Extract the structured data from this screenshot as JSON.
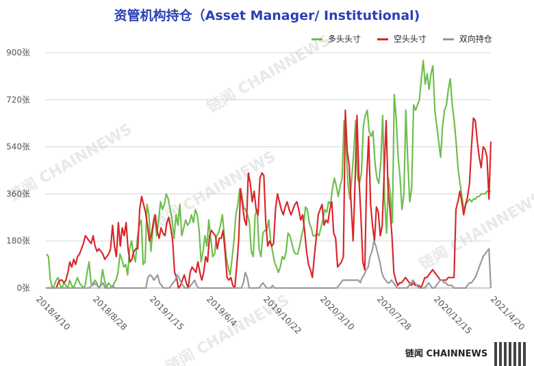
{
  "title": "资管机构持仓（Asset Manager/ Institutional)",
  "watermark": "链闻 CHAINNEWS",
  "brand": "链闻 CHAINNEWS",
  "chart_data": {
    "type": "line",
    "title": "资管机构持仓（Asset Manager/ Institutional)",
    "xlabel": "",
    "ylabel": "",
    "ylim": [
      0,
      900
    ],
    "yticks": [
      "0张",
      "180张",
      "360张",
      "540张",
      "720张",
      "900张"
    ],
    "ytick_values": [
      0,
      180,
      360,
      540,
      720,
      900
    ],
    "xticks": [
      "2018/4/10",
      "2018/8/28",
      "2019/1/15",
      "2019/6/4",
      "2019/10/22",
      "2020/3/10",
      "2020/7/28",
      "2020/12/15",
      "2021/4/20"
    ],
    "grid": "horizontal",
    "legend_position": "top-right",
    "series": [
      {
        "name": "多头头寸",
        "color": "#6dbe4b",
        "values": [
          130,
          120,
          30,
          0,
          10,
          30,
          40,
          10,
          0,
          20,
          10,
          0,
          30,
          10,
          0,
          20,
          40,
          20,
          10,
          0,
          10,
          60,
          100,
          20,
          10,
          30,
          20,
          0,
          10,
          70,
          30,
          0,
          20,
          10,
          0,
          20,
          30,
          60,
          130,
          110,
          80,
          90,
          50,
          150,
          180,
          130,
          100,
          190,
          240,
          260,
          90,
          100,
          320,
          280,
          140,
          220,
          280,
          200,
          260,
          330,
          300,
          320,
          360,
          340,
          300,
          260,
          190,
          280,
          240,
          320,
          200,
          230,
          260,
          240,
          250,
          280,
          250,
          300,
          280,
          220,
          100,
          140,
          200,
          160,
          260,
          190,
          120,
          130,
          200,
          210,
          240,
          280,
          200,
          120,
          80,
          50,
          110,
          180,
          280,
          320,
          380,
          360,
          310,
          300,
          280,
          250,
          140,
          120,
          280,
          300,
          150,
          120,
          210,
          220,
          220,
          260,
          180,
          140,
          100,
          80,
          60,
          80,
          120,
          110,
          140,
          210,
          200,
          170,
          140,
          130,
          130,
          160,
          200,
          230,
          310,
          300,
          250,
          230,
          200,
          200,
          210,
          200,
          230,
          260,
          300,
          290,
          330,
          320,
          380,
          420,
          390,
          350,
          390,
          420,
          640,
          560,
          400,
          340,
          420,
          520,
          640,
          420,
          400,
          440,
          620,
          660,
          680,
          600,
          580,
          600,
          480,
          420,
          400,
          480,
          660,
          340,
          210,
          420,
          360,
          250,
          740,
          650,
          500,
          420,
          300,
          360,
          680,
          480,
          330,
          380,
          700,
          680,
          700,
          720,
          800,
          870,
          780,
          820,
          760,
          820,
          850,
          680,
          620,
          560,
          500,
          620,
          680,
          700,
          760,
          800,
          700,
          640,
          560,
          460,
          400,
          350,
          300,
          320,
          330,
          340,
          330,
          340,
          340,
          350,
          350,
          360,
          360,
          360,
          370,
          370,
          370
        ],
        "note": "approximate readings"
      },
      {
        "name": "空头头寸",
        "color": "#d9262b",
        "values": [
          0,
          0,
          0,
          0,
          0,
          0,
          20,
          30,
          30,
          20,
          30,
          60,
          100,
          80,
          110,
          90,
          120,
          130,
          150,
          170,
          200,
          190,
          180,
          170,
          200,
          160,
          140,
          150,
          140,
          130,
          110,
          120,
          130,
          150,
          240,
          160,
          120,
          250,
          160,
          230,
          200,
          250,
          150,
          100,
          110,
          140,
          150,
          150,
          300,
          350,
          320,
          290,
          240,
          180,
          200,
          250,
          280,
          220,
          190,
          230,
          210,
          200,
          250,
          270,
          230,
          180,
          60,
          40,
          0,
          10,
          30,
          50,
          20,
          0,
          60,
          80,
          70,
          60,
          100,
          60,
          30,
          60,
          120,
          100,
          200,
          220,
          210,
          200,
          150,
          190,
          190,
          220,
          140,
          40,
          30,
          40,
          10,
          0,
          80,
          180,
          380,
          320,
          260,
          240,
          440,
          400,
          330,
          370,
          300,
          280,
          420,
          440,
          430,
          250,
          160,
          180,
          160,
          170,
          300,
          360,
          330,
          300,
          280,
          310,
          330,
          300,
          280,
          300,
          320,
          330,
          300,
          260,
          280,
          220,
          140,
          90,
          70,
          40,
          120,
          190,
          280,
          300,
          320,
          240,
          260,
          250,
          300,
          330,
          210,
          190,
          80,
          90,
          100,
          120,
          680,
          520,
          470,
          320,
          180,
          400,
          660,
          420,
          280,
          100,
          70,
          420,
          580,
          320,
          240,
          180,
          310,
          290,
          200,
          240,
          440,
          640,
          380,
          300,
          200,
          60,
          30,
          10,
          20,
          20,
          30,
          40,
          30,
          20,
          10,
          20,
          10,
          10,
          10,
          0,
          20,
          40,
          40,
          50,
          60,
          70,
          60,
          50,
          40,
          30,
          30,
          30,
          30,
          40,
          40,
          40,
          40,
          300,
          330,
          370,
          330,
          280,
          320,
          350,
          400,
          540,
          650,
          640,
          560,
          500,
          460,
          540,
          530,
          500,
          340,
          560
        ],
        "note": "approximate readings"
      },
      {
        "name": "双向持仓",
        "color": "#999999",
        "values": [
          0,
          0,
          0,
          0,
          0,
          0,
          0,
          0,
          0,
          0,
          0,
          0,
          0,
          0,
          0,
          0,
          0,
          0,
          0,
          0,
          0,
          0,
          0,
          10,
          20,
          15,
          10,
          0,
          10,
          20,
          0,
          0,
          0,
          0,
          10,
          0,
          0,
          0,
          0,
          0,
          0,
          0,
          0,
          0,
          0,
          0,
          0,
          0,
          0,
          0,
          0,
          0,
          40,
          50,
          45,
          30,
          40,
          50,
          20,
          10,
          0,
          0,
          0,
          0,
          10,
          20,
          30,
          50,
          40,
          20,
          10,
          0,
          0,
          0,
          10,
          20,
          30,
          10,
          0,
          0,
          0,
          0,
          0,
          0,
          0,
          0,
          0,
          0,
          0,
          0,
          0,
          0,
          0,
          0,
          0,
          0,
          0,
          0,
          0,
          0,
          0,
          20,
          60,
          40,
          0,
          0,
          0,
          0,
          0,
          0,
          10,
          20,
          10,
          0,
          0,
          0,
          10,
          0,
          0,
          0,
          0,
          0,
          0,
          0,
          0,
          0,
          0,
          0,
          0,
          0,
          0,
          0,
          0,
          0,
          0,
          0,
          0,
          0,
          0,
          0,
          0,
          0,
          0,
          0,
          0,
          0,
          0,
          0,
          0,
          0,
          10,
          20,
          30,
          30,
          30,
          30,
          30,
          30,
          30,
          30,
          30,
          20,
          40,
          50,
          70,
          80,
          120,
          140,
          180,
          160,
          130,
          100,
          60,
          40,
          30,
          20,
          20,
          30,
          20,
          10,
          0,
          0,
          0,
          0,
          0,
          0,
          10,
          20,
          30,
          20,
          10,
          0,
          0,
          0,
          0,
          10,
          20,
          10,
          0,
          0,
          10,
          20,
          30,
          30,
          20,
          20,
          10,
          10,
          10,
          0,
          0,
          0,
          0,
          0,
          0,
          0,
          10,
          20,
          20,
          30,
          40,
          60,
          80,
          100,
          120,
          130,
          140,
          150,
          0
        ],
        "note": "approximate readings"
      }
    ]
  }
}
